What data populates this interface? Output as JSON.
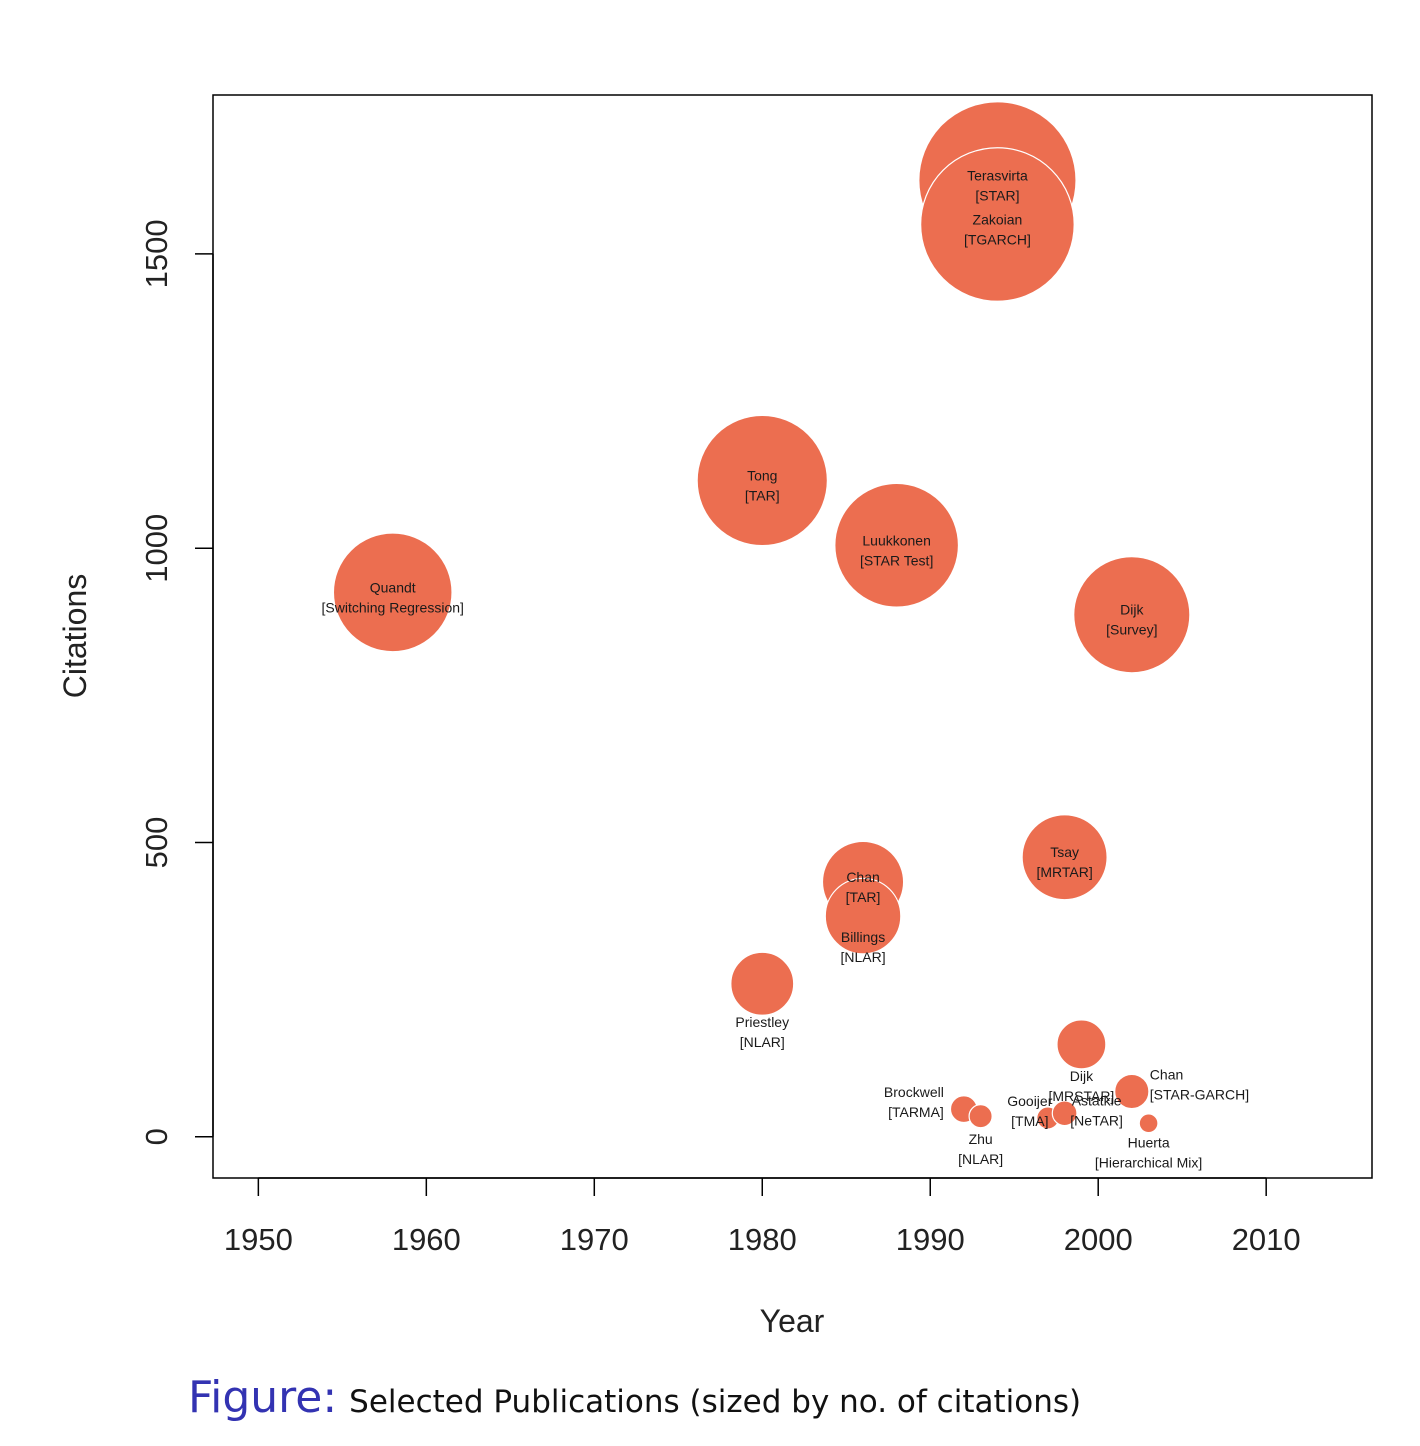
{
  "chart_data": {
    "type": "scatter",
    "xlabel": "Year",
    "ylabel": "Citations",
    "xlim": [
      1947.3,
      2016.3
    ],
    "ylim": [
      -70,
      1770
    ],
    "xticks": [
      "1950",
      "1960",
      "1970",
      "1980",
      "1990",
      "2000",
      "2010"
    ],
    "yticks": [
      "0",
      "500",
      "1000",
      "1500"
    ],
    "grid": false,
    "legend": "none",
    "bubble_color": "#ec6e50",
    "points": [
      {
        "author": "Terasvirta",
        "model": "[STAR]",
        "x": 1994,
        "y": 1625
      },
      {
        "author": "Zakoian",
        "model": "[TGARCH]",
        "x": 1994,
        "y": 1550
      },
      {
        "author": "Tong",
        "model": "[TAR]",
        "x": 1980,
        "y": 1115
      },
      {
        "author": "Luukkonen",
        "model": "[STAR Test]",
        "x": 1988,
        "y": 1005
      },
      {
        "author": "Quandt",
        "model": "[Switching Regression]",
        "x": 1958,
        "y": 925
      },
      {
        "author": "Dijk",
        "model": "[Survey]",
        "x": 2002,
        "y": 887
      },
      {
        "author": "Tsay",
        "model": "[MRTAR]",
        "x": 1998,
        "y": 475
      },
      {
        "author": "Chan",
        "model": "[TAR]",
        "x": 1986,
        "y": 433
      },
      {
        "author": "Billings",
        "model": "[NLAR]",
        "x": 1986,
        "y": 375
      },
      {
        "author": "Priestley",
        "model": "[NLAR]",
        "x": 1980,
        "y": 260
      },
      {
        "author": "Dijk",
        "model": "[MRSTAR]",
        "x": 1999,
        "y": 157
      },
      {
        "author": "Chan",
        "model": "[STAR-GARCH]",
        "x": 2002,
        "y": 77
      },
      {
        "author": "Brockwell",
        "model": "[TARMA]",
        "x": 1992,
        "y": 47
      },
      {
        "author": "Zhu",
        "model": "[NLAR]",
        "x": 1993,
        "y": 35
      },
      {
        "author": "Gooijer",
        "model": "[TMA]",
        "x": 1997,
        "y": 32
      },
      {
        "author": "Astatkie",
        "model": "[NeTAR]",
        "x": 1998,
        "y": 40
      },
      {
        "author": "Huerta",
        "model": "[Hierarchical Mix]",
        "x": 2003,
        "y": 23
      }
    ]
  },
  "caption": {
    "prefix": "Figure:",
    "text": "Selected Publications (sized by no. of citations)"
  }
}
